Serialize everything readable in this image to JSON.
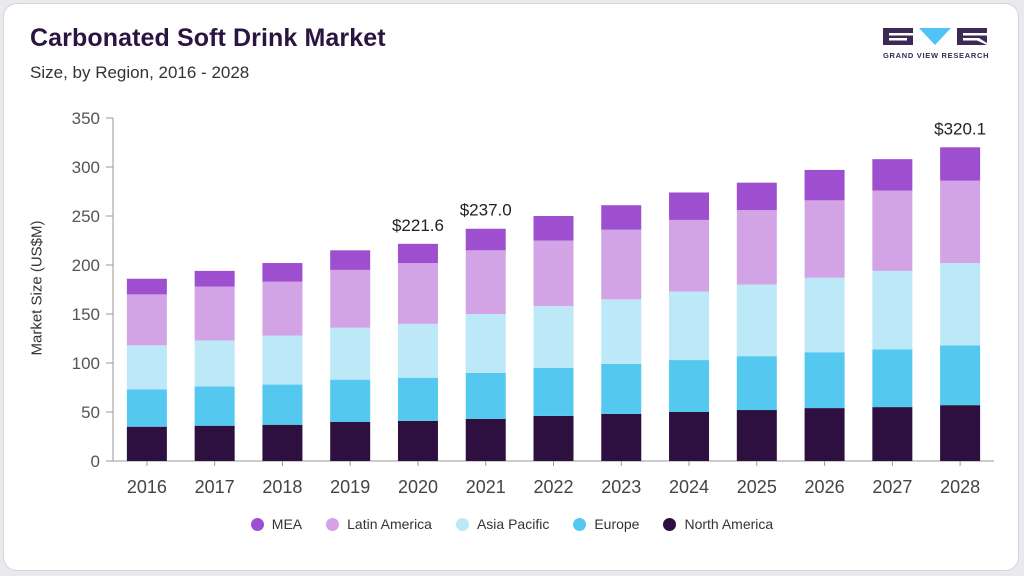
{
  "header": {
    "title": "Carbonated Soft Drink Market",
    "subtitle": "Size, by Region, 2016 - 2028"
  },
  "logo": {
    "text": "GRAND VIEW RESEARCH",
    "color": "#3a2a55",
    "accent": "#4fc3f7"
  },
  "chart_data": {
    "type": "bar",
    "stacked": true,
    "ylabel": "Market Size (US$M)",
    "xlabel": "",
    "ylim": [
      0,
      350
    ],
    "yticks": [
      0,
      50,
      100,
      150,
      200,
      250,
      300,
      350
    ],
    "categories": [
      "2016",
      "2017",
      "2018",
      "2019",
      "2020",
      "2021",
      "2022",
      "2023",
      "2024",
      "2025",
      "2026",
      "2027",
      "2028"
    ],
    "series": [
      {
        "name": "North America",
        "color": "#2d1040",
        "values": [
          35,
          36,
          37,
          40,
          41,
          43,
          46,
          48,
          50,
          52,
          54,
          55,
          57
        ]
      },
      {
        "name": "Europe",
        "color": "#55c8f0",
        "values": [
          38,
          40,
          41,
          43,
          44,
          47,
          49,
          51,
          53,
          55,
          57,
          59,
          61
        ]
      },
      {
        "name": "Asia Pacific",
        "color": "#bde8f8",
        "values": [
          45,
          47,
          50,
          53,
          55,
          60,
          63,
          66,
          70,
          73,
          76,
          80,
          84
        ]
      },
      {
        "name": "Latin America",
        "color": "#d2a4e6",
        "values": [
          52,
          55,
          55,
          59,
          62,
          65,
          67,
          71,
          73,
          76,
          79,
          82,
          84
        ]
      },
      {
        "name": "MEA",
        "color": "#9d4fd0",
        "values": [
          16,
          16,
          19,
          20,
          19.6,
          22,
          25,
          25,
          28,
          28,
          31,
          32,
          34.1
        ]
      }
    ],
    "annotations": [
      {
        "category": "2020",
        "label": "$221.6",
        "value": 221.6
      },
      {
        "category": "2021",
        "label": "$237.0",
        "value": 237.0
      },
      {
        "category": "2028",
        "label": "$320.1",
        "value": 320.1
      }
    ],
    "legend_order": [
      "MEA",
      "Latin America",
      "Asia Pacific",
      "Europe",
      "North America"
    ],
    "legend_position": "bottom",
    "grid": false
  }
}
